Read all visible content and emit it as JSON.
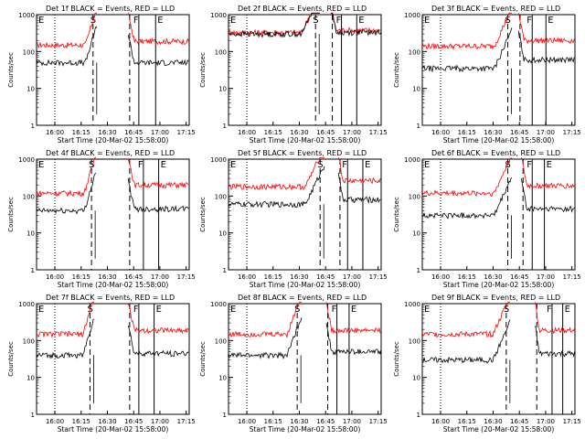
{
  "chart_data": [
    {
      "type": "line",
      "title": "Det 1f BLACK = Events, RED = LLD",
      "xlabel": "Start Time (20-Mar-02 15:58:00)",
      "ylabel": "Counts/sec",
      "y_scale": "log",
      "ylim": [
        1,
        1000
      ],
      "yticks": [
        "1",
        "10",
        "100",
        "1000"
      ],
      "xticks": [
        "16:00",
        "16:15",
        "16:30",
        "16:45",
        "17:00",
        "17:15"
      ],
      "marker_labels": [
        "E",
        "S",
        "F",
        "E"
      ],
      "series": [
        {
          "name": "RED = LLD",
          "color": "#ff0000",
          "level_before": 150,
          "level_after": 190
        },
        {
          "name": "BLACK = Events",
          "color": "#000000",
          "level_before": 50,
          "level_after": 50
        }
      ]
    },
    {
      "type": "line",
      "title": "Det 2f BLACK = Events, RED = LLD",
      "xlabel": "Start Time (20-Mar-02 15:58:00)",
      "ylabel": "Counts/sec",
      "y_scale": "log",
      "ylim": [
        1,
        1000
      ],
      "yticks": [
        "1",
        "10",
        "100",
        "1000"
      ],
      "xticks": [
        "16:00",
        "16:15",
        "16:30",
        "16:45",
        "17:00",
        "17:15"
      ],
      "marker_labels": [
        "E",
        "S",
        "F",
        "E"
      ],
      "series": [
        {
          "name": "RED = LLD",
          "color": "#ff0000",
          "level_before": 330,
          "level_after": 380
        },
        {
          "name": "BLACK = Events",
          "color": "#000000",
          "level_before": 300,
          "level_after": 330
        }
      ]
    },
    {
      "type": "line",
      "title": "Det 3f BLACK = Events, RED = LLD",
      "xlabel": "Start Time (20-Mar-02 15:58:00)",
      "ylabel": "Counts/sec",
      "y_scale": "log",
      "ylim": [
        1,
        1000
      ],
      "yticks": [
        "1",
        "10",
        "100",
        "1000"
      ],
      "xticks": [
        "16:00",
        "16:15",
        "16:30",
        "16:45",
        "17:00",
        "17:15"
      ],
      "marker_labels": [
        "E",
        "S",
        "F",
        "E"
      ],
      "series": [
        {
          "name": "RED = LLD",
          "color": "#ff0000",
          "level_before": 140,
          "level_after": 200
        },
        {
          "name": "BLACK = Events",
          "color": "#000000",
          "level_before": 35,
          "level_after": 60
        }
      ]
    },
    {
      "type": "line",
      "title": "Det 4f BLACK = Events, RED = LLD",
      "xlabel": "Start Time (20-Mar-02 15:58:00)",
      "ylabel": "Counts/sec",
      "y_scale": "log",
      "ylim": [
        1,
        1000
      ],
      "yticks": [
        "1",
        "10",
        "100",
        "1000"
      ],
      "xticks": [
        "16:00",
        "16:15",
        "16:30",
        "16:45",
        "17:00",
        "17:15"
      ],
      "marker_labels": [
        "E",
        "S",
        "F",
        "E"
      ],
      "series": [
        {
          "name": "RED = LLD",
          "color": "#ff0000",
          "level_before": 120,
          "level_after": 200
        },
        {
          "name": "BLACK = Events",
          "color": "#000000",
          "level_before": 40,
          "level_after": 45
        }
      ]
    },
    {
      "type": "line",
      "title": "Det 5f BLACK = Events, RED = LLD",
      "xlabel": "Start Time (20-Mar-02 15:58:00)",
      "ylabel": "Counts/sec",
      "y_scale": "log",
      "ylim": [
        1,
        1000
      ],
      "yticks": [
        "1",
        "10",
        "100",
        "1000"
      ],
      "xticks": [
        "16:00",
        "16:15",
        "16:30",
        "16:45",
        "17:00",
        "17:15"
      ],
      "marker_labels": [
        "E",
        "S",
        "F",
        "E"
      ],
      "series": [
        {
          "name": "RED = LLD",
          "color": "#ff0000",
          "level_before": 180,
          "level_after": 260
        },
        {
          "name": "BLACK = Events",
          "color": "#000000",
          "level_before": 60,
          "level_after": 80
        }
      ]
    },
    {
      "type": "line",
      "title": "Det 6f BLACK = Events, RED = LLD",
      "xlabel": "Start Time (20-Mar-02 15:58:00)",
      "ylabel": "Counts/sec",
      "y_scale": "log",
      "ylim": [
        1,
        1000
      ],
      "yticks": [
        "1",
        "10",
        "100",
        "1000"
      ],
      "xticks": [
        "16:00",
        "16:15",
        "16:30",
        "16:45",
        "17:00",
        "17:15"
      ],
      "marker_labels": [
        "E",
        "S",
        "F",
        "E"
      ],
      "series": [
        {
          "name": "RED = LLD",
          "color": "#ff0000",
          "level_before": 120,
          "level_after": 190
        },
        {
          "name": "BLACK = Events",
          "color": "#000000",
          "level_before": 30,
          "level_after": 45
        }
      ]
    },
    {
      "type": "line",
      "title": "Det 7f BLACK = Events, RED = LLD",
      "xlabel": "Start Time (20-Mar-02 15:58:00)",
      "ylabel": "Counts/sec",
      "y_scale": "log",
      "ylim": [
        1,
        1000
      ],
      "yticks": [
        "1",
        "10",
        "100",
        "1000"
      ],
      "xticks": [
        "16:00",
        "16:15",
        "16:30",
        "16:45",
        "17:00",
        "17:15"
      ],
      "marker_labels": [
        "E",
        "S",
        "F",
        "E"
      ],
      "series": [
        {
          "name": "RED = LLD",
          "color": "#ff0000",
          "level_before": 150,
          "level_after": 190
        },
        {
          "name": "BLACK = Events",
          "color": "#000000",
          "level_before": 40,
          "level_after": 45
        }
      ]
    },
    {
      "type": "line",
      "title": "Det 8f BLACK = Events, RED = LLD",
      "xlabel": "Start Time (20-Mar-02 15:58:00)",
      "ylabel": "Counts/sec",
      "y_scale": "log",
      "ylim": [
        1,
        1000
      ],
      "yticks": [
        "1",
        "10",
        "100",
        "1000"
      ],
      "xticks": [
        "16:00",
        "16:15",
        "16:30",
        "16:45",
        "17:00",
        "17:15"
      ],
      "marker_labels": [
        "E",
        "S",
        "F",
        "E"
      ],
      "series": [
        {
          "name": "RED = LLD",
          "color": "#ff0000",
          "level_before": 150,
          "level_after": 190
        },
        {
          "name": "BLACK = Events",
          "color": "#000000",
          "level_before": 40,
          "level_after": 50
        }
      ]
    },
    {
      "type": "line",
      "title": "Det 9f BLACK = Events, RED = LLD",
      "xlabel": "Start Time (20-Mar-02 15:58:00)",
      "ylabel": "Counts/sec",
      "y_scale": "log",
      "ylim": [
        1,
        1000
      ],
      "yticks": [
        "1",
        "10",
        "100",
        "1000"
      ],
      "xticks": [
        "16:00",
        "16:15",
        "16:30",
        "16:45",
        "17:00",
        "17:15"
      ],
      "marker_labels": [
        "E",
        "S",
        "F",
        "E"
      ],
      "series": [
        {
          "name": "RED = LLD",
          "color": "#ff0000",
          "level_before": 150,
          "level_after": 190
        },
        {
          "name": "BLACK = Events",
          "color": "#000000",
          "level_before": 30,
          "level_after": 45
        }
      ]
    }
  ]
}
